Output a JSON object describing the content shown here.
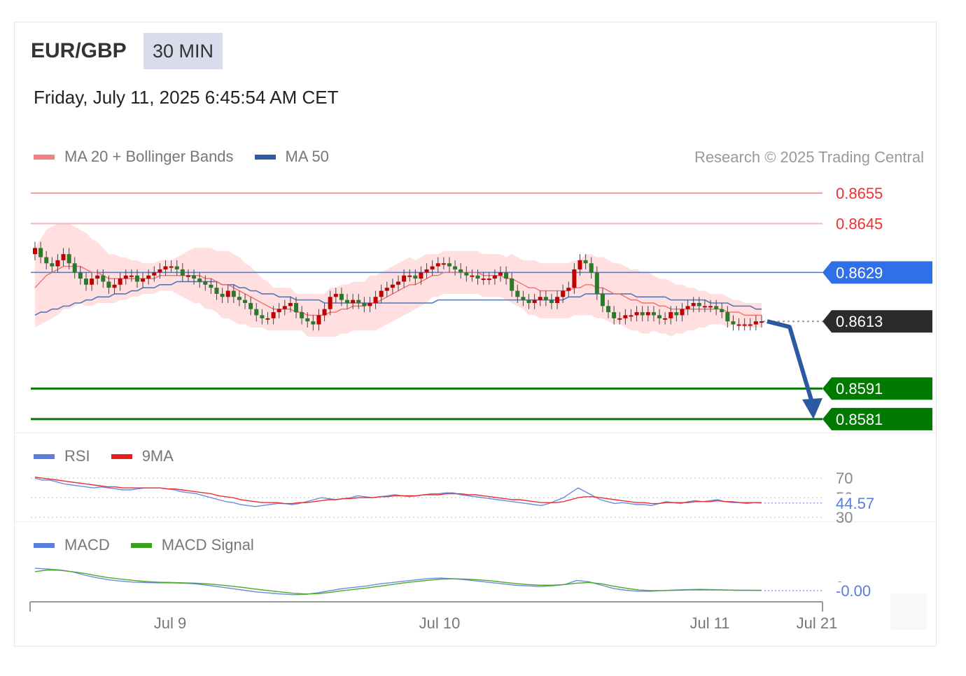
{
  "header": {
    "symbol": "EUR/GBP",
    "timeframe": "30 MIN",
    "timestamp": "Friday, July 11, 2025 6:45:54 AM CET"
  },
  "legend_main": [
    {
      "label": "MA 20 + Bollinger Bands",
      "color": "#f07070"
    },
    {
      "label": "MA 50",
      "color": "#2f5aa8"
    }
  ],
  "credit": "Research © 2025 Trading Central",
  "legend_rsi": [
    {
      "label": "RSI",
      "color": "#5b7ddb"
    },
    {
      "label": "9MA",
      "color": "#e82020"
    }
  ],
  "legend_macd": [
    {
      "label": "MACD",
      "color": "#5b7ddb"
    },
    {
      "label": "MACD Signal",
      "color": "#3ba01c"
    }
  ],
  "colors": {
    "resistance": "#f03030",
    "pivot": "#2f6fe8",
    "current": "#2b2b2b",
    "support": "#007a00",
    "arrow": "#2c5aa0",
    "band": "#ffd9d9",
    "candle_up": "#c00000",
    "candle_down": "#2a7a2a"
  },
  "chart_data": [
    {
      "type": "line",
      "panel": "price",
      "ylim": [
        0.8578,
        0.866
      ],
      "levels": [
        {
          "value": 0.8655,
          "label": "0.8655",
          "kind": "resistance"
        },
        {
          "value": 0.8645,
          "label": "0.8645",
          "kind": "resistance"
        },
        {
          "value": 0.8629,
          "label": "0.8629",
          "kind": "pivot"
        },
        {
          "value": 0.8613,
          "label": "0.8613",
          "kind": "current"
        },
        {
          "value": 0.8591,
          "label": "0.8591",
          "kind": "support"
        },
        {
          "value": 0.8581,
          "label": "0.8581",
          "kind": "support"
        }
      ],
      "close": [
        0.8637,
        0.8634,
        0.8632,
        0.8631,
        0.8633,
        0.8635,
        0.8632,
        0.8629,
        0.8627,
        0.8625,
        0.8627,
        0.8628,
        0.8626,
        0.8624,
        0.8625,
        0.8627,
        0.8628,
        0.8628,
        0.8626,
        0.8627,
        0.8628,
        0.8629,
        0.863,
        0.8631,
        0.8631,
        0.863,
        0.8628,
        0.8628,
        0.8627,
        0.8626,
        0.8625,
        0.8624,
        0.8622,
        0.8621,
        0.8623,
        0.8621,
        0.862,
        0.8619,
        0.8617,
        0.8615,
        0.8614,
        0.8614,
        0.8616,
        0.8617,
        0.8618,
        0.8619,
        0.8616,
        0.8614,
        0.8613,
        0.8612,
        0.8615,
        0.8617,
        0.8621,
        0.8622,
        0.862,
        0.8619,
        0.862,
        0.8619,
        0.8618,
        0.8619,
        0.8621,
        0.8623,
        0.8624,
        0.8625,
        0.8626,
        0.8628,
        0.8628,
        0.8627,
        0.8629,
        0.863,
        0.8631,
        0.8632,
        0.8632,
        0.8631,
        0.863,
        0.8629,
        0.8628,
        0.8628,
        0.8627,
        0.8627,
        0.8627,
        0.8628,
        0.8629,
        0.8627,
        0.8623,
        0.8621,
        0.862,
        0.8619,
        0.862,
        0.8621,
        0.862,
        0.8619,
        0.8621,
        0.8623,
        0.8624,
        0.863,
        0.8633,
        0.8632,
        0.8629,
        0.8622,
        0.8618,
        0.8616,
        0.8614,
        0.8614,
        0.8615,
        0.8615,
        0.8616,
        0.8615,
        0.8616,
        0.8615,
        0.8614,
        0.8614,
        0.8616,
        0.8615,
        0.8617,
        0.8618,
        0.8619,
        0.8618,
        0.8618,
        0.8618,
        0.8617,
        0.8616,
        0.8613,
        0.8612,
        0.8612,
        0.8612,
        0.8612,
        0.8613,
        0.8613
      ],
      "ma20": [
        0.8624,
        0.8626,
        0.8628,
        0.8629,
        0.863,
        0.8631,
        0.8631,
        0.8631,
        0.8631,
        0.863,
        0.8629,
        0.8629,
        0.8628,
        0.8627,
        0.8627,
        0.8627,
        0.8627,
        0.8627,
        0.8627,
        0.8627,
        0.8627,
        0.8627,
        0.8628,
        0.8628,
        0.8628,
        0.8628,
        0.8628,
        0.8628,
        0.8628,
        0.8628,
        0.8627,
        0.8627,
        0.8626,
        0.8625,
        0.8625,
        0.8624,
        0.8623,
        0.8622,
        0.8621,
        0.862,
        0.8619,
        0.8618,
        0.8617,
        0.8617,
        0.8617,
        0.8617,
        0.8616,
        0.8616,
        0.8615,
        0.8615,
        0.8615,
        0.8615,
        0.8616,
        0.8616,
        0.8617,
        0.8617,
        0.8618,
        0.8618,
        0.8618,
        0.8619,
        0.8619,
        0.862,
        0.8621,
        0.8622,
        0.8623,
        0.8624,
        0.8625,
        0.8625,
        0.8626,
        0.8627,
        0.8628,
        0.8628,
        0.8629,
        0.8629,
        0.8629,
        0.8629,
        0.8629,
        0.8629,
        0.8629,
        0.8628,
        0.8628,
        0.8628,
        0.8628,
        0.8627,
        0.8627,
        0.8626,
        0.8625,
        0.8624,
        0.8624,
        0.8623,
        0.8623,
        0.8623,
        0.8623,
        0.8623,
        0.8623,
        0.8624,
        0.8624,
        0.8625,
        0.8625,
        0.8624,
        0.8624,
        0.8623,
        0.8622,
        0.8622,
        0.8621,
        0.862,
        0.862,
        0.8619,
        0.8619,
        0.8619,
        0.8618,
        0.8618,
        0.8617,
        0.8617,
        0.8617,
        0.8617,
        0.8617,
        0.8617,
        0.8617,
        0.8617,
        0.8617,
        0.8617,
        0.8616,
        0.8616,
        0.8616,
        0.8615,
        0.8615,
        0.8615,
        0.8615
      ],
      "ma50": [
        0.8615,
        0.8616,
        0.8616,
        0.8617,
        0.8617,
        0.8618,
        0.8618,
        0.8619,
        0.8619,
        0.862,
        0.862,
        0.8621,
        0.8621,
        0.8621,
        0.8622,
        0.8622,
        0.8622,
        0.8623,
        0.8623,
        0.8624,
        0.8624,
        0.8624,
        0.8625,
        0.8625,
        0.8625,
        0.8626,
        0.8626,
        0.8626,
        0.8626,
        0.8626,
        0.8626,
        0.8626,
        0.8626,
        0.8625,
        0.8625,
        0.8625,
        0.8624,
        0.8624,
        0.8623,
        0.8623,
        0.8622,
        0.8622,
        0.8622,
        0.8621,
        0.8621,
        0.8621,
        0.862,
        0.862,
        0.862,
        0.862,
        0.862,
        0.8619,
        0.8619,
        0.8619,
        0.8619,
        0.8619,
        0.8619,
        0.8619,
        0.8619,
        0.8619,
        0.8619,
        0.8619,
        0.8619,
        0.8619,
        0.8619,
        0.8619,
        0.8619,
        0.8619,
        0.8619,
        0.8619,
        0.8619,
        0.862,
        0.862,
        0.862,
        0.862,
        0.862,
        0.862,
        0.862,
        0.862,
        0.862,
        0.862,
        0.862,
        0.862,
        0.862,
        0.862,
        0.862,
        0.862,
        0.862,
        0.862,
        0.862,
        0.862,
        0.862,
        0.862,
        0.862,
        0.8621,
        0.8621,
        0.8621,
        0.8622,
        0.8622,
        0.8622,
        0.8622,
        0.8622,
        0.8622,
        0.8622,
        0.8622,
        0.8622,
        0.8621,
        0.8621,
        0.8621,
        0.8621,
        0.8621,
        0.8621,
        0.862,
        0.862,
        0.862,
        0.862,
        0.862,
        0.862,
        0.862,
        0.8619,
        0.8619,
        0.8619,
        0.8619,
        0.8618,
        0.8618,
        0.8618,
        0.8618,
        0.8617,
        0.8617
      ],
      "band_width": [
        0.0013,
        0.0014,
        0.0015,
        0.0015,
        0.0015,
        0.0014,
        0.0014,
        0.0013,
        0.0012,
        0.0012,
        0.0011,
        0.001,
        0.0009,
        0.0008,
        0.0008,
        0.0007,
        0.0007,
        0.0006,
        0.0006,
        0.0005,
        0.0005,
        0.0005,
        0.0005,
        0.0005,
        0.0005,
        0.0006,
        0.0007,
        0.0008,
        0.0009,
        0.0009,
        0.001,
        0.001,
        0.001,
        0.0011,
        0.0011,
        0.0011,
        0.0011,
        0.001,
        0.001,
        0.0009,
        0.0008,
        0.0008,
        0.0007,
        0.0007,
        0.0007,
        0.0007,
        0.0006,
        0.0006,
        0.0007,
        0.0007,
        0.0007,
        0.0007,
        0.0008,
        0.0008,
        0.0008,
        0.0008,
        0.0008,
        0.0008,
        0.0008,
        0.0009,
        0.0009,
        0.0009,
        0.0009,
        0.0009,
        0.0009,
        0.0009,
        0.0009,
        0.0008,
        0.0008,
        0.0008,
        0.0007,
        0.0007,
        0.0007,
        0.0007,
        0.0007,
        0.0007,
        0.0007,
        0.0007,
        0.0007,
        0.0007,
        0.0007,
        0.0007,
        0.0007,
        0.0007,
        0.0008,
        0.0008,
        0.0008,
        0.0009,
        0.0009,
        0.0009,
        0.0009,
        0.0009,
        0.0009,
        0.0009,
        0.0009,
        0.0009,
        0.0009,
        0.001,
        0.001,
        0.001,
        0.001,
        0.001,
        0.001,
        0.001,
        0.001,
        0.001,
        0.001,
        0.001,
        0.001,
        0.0009,
        0.0009,
        0.0009,
        0.0009,
        0.0008,
        0.0008,
        0.0007,
        0.0007,
        0.0006,
        0.0006,
        0.0005,
        0.0005,
        0.0005,
        0.0005,
        0.0004,
        0.0004,
        0.0004,
        0.0004,
        0.0004,
        0.0004
      ],
      "forecast": {
        "from": 0.8613,
        "to": 0.8581
      },
      "x_labels": [
        "Jul 9",
        "Jul 10",
        "Jul 11",
        "Jul 21"
      ]
    },
    {
      "type": "line",
      "panel": "rsi",
      "ylim": [
        28,
        78
      ],
      "levels": [
        {
          "value": 70,
          "label": "70"
        },
        {
          "value": 50,
          "label": "50"
        },
        {
          "value": 30,
          "label": "30"
        }
      ],
      "current_label": "44.57",
      "rsi": [
        70,
        68,
        68,
        66,
        64,
        63,
        62,
        61,
        60,
        61,
        60,
        59,
        58,
        58,
        59,
        60,
        60,
        60,
        59,
        58,
        56,
        55,
        54,
        52,
        50,
        48,
        46,
        45,
        43,
        42,
        41,
        42,
        43,
        44,
        44,
        43,
        44,
        46,
        48,
        50,
        49,
        48,
        49,
        50,
        52,
        51,
        50,
        51,
        52,
        53,
        52,
        51,
        52,
        53,
        54,
        54,
        55,
        55,
        53,
        52,
        51,
        50,
        49,
        48,
        47,
        46,
        45,
        44,
        43,
        42,
        44,
        47,
        50,
        55,
        60,
        56,
        52,
        48,
        46,
        44,
        45,
        44,
        43,
        43,
        42,
        44,
        46,
        45,
        44,
        46,
        47,
        46,
        47,
        48,
        46,
        45,
        45,
        44,
        45,
        44.57
      ],
      "ma9": [
        71,
        70,
        69,
        68,
        67,
        66,
        65,
        64,
        63,
        62,
        61,
        61,
        60,
        60,
        60,
        60,
        60,
        60,
        59,
        59,
        58,
        57,
        56,
        55,
        54,
        52,
        51,
        50,
        48,
        47,
        46,
        45,
        45,
        45,
        44,
        44,
        45,
        45,
        46,
        47,
        48,
        48,
        49,
        49,
        50,
        50,
        50,
        51,
        51,
        52,
        52,
        52,
        52,
        53,
        53,
        53,
        54,
        54,
        54,
        53,
        53,
        52,
        51,
        50,
        49,
        48,
        48,
        47,
        46,
        45,
        45,
        45,
        46,
        48,
        50,
        51,
        51,
        50,
        49,
        48,
        47,
        46,
        45,
        45,
        44,
        44,
        45,
        45,
        45,
        45,
        46,
        46,
        46,
        47,
        46,
        46,
        45,
        45,
        45,
        45
      ]
    },
    {
      "type": "line",
      "panel": "macd",
      "ylim": [
        -0.00035,
        0.00085
      ],
      "levels": [
        {
          "value": 0,
          "label": "0"
        }
      ],
      "current_label": "-0.00",
      "macd": [
        0.0006,
        0.00058,
        0.00055,
        0.0005,
        0.0004,
        0.00032,
        0.00026,
        0.00022,
        0.00019,
        0.00018,
        0.00017,
        0.00017,
        0.00016,
        0.00014,
        0.0001,
        5e-05,
        0.0,
        -5e-05,
        -0.0001,
        -0.00013,
        -0.00016,
        -0.00018,
        -0.00017,
        -0.00012,
        -6e-05,
        0.0,
        4e-05,
        8e-05,
        0.00014,
        0.00018,
        0.00022,
        0.00026,
        0.0003,
        0.00031,
        0.00029,
        0.00026,
        0.00022,
        0.00018,
        0.00014,
        0.0001,
        8e-05,
        6e-05,
        8e-05,
        0.00012,
        0.00024,
        0.0002,
        0.0001,
        0.0,
        -5e-05,
        -8e-05,
        -8e-05,
        -6e-05,
        -4e-05,
        -3e-05,
        -2e-05,
        -3e-05,
        -4e-05,
        -5e-05,
        -5e-05,
        -6e-05
      ],
      "signal": [
        0.0005,
        0.00055,
        0.00054,
        0.0005,
        0.00045,
        0.00038,
        0.00032,
        0.00028,
        0.00024,
        0.00021,
        0.00019,
        0.00018,
        0.00017,
        0.00016,
        0.00014,
        0.00011,
        7e-05,
        3e-05,
        -2e-05,
        -6e-05,
        -0.0001,
        -0.00014,
        -0.00016,
        -0.00015,
        -0.00011,
        -6e-05,
        -2e-05,
        2e-05,
        7e-05,
        0.00012,
        0.00017,
        0.00021,
        0.00025,
        0.00028,
        0.00029,
        0.00028,
        0.00026,
        0.00023,
        0.00019,
        0.00015,
        0.00012,
        0.0001,
        0.0001,
        0.00012,
        0.00016,
        0.00018,
        0.00014,
        7e-05,
        1e-05,
        -4e-05,
        -6e-05,
        -6e-05,
        -5e-05,
        -4e-05,
        -4e-05,
        -4e-05,
        -4e-05,
        -5e-05,
        -5e-05,
        -5e-05
      ]
    }
  ]
}
